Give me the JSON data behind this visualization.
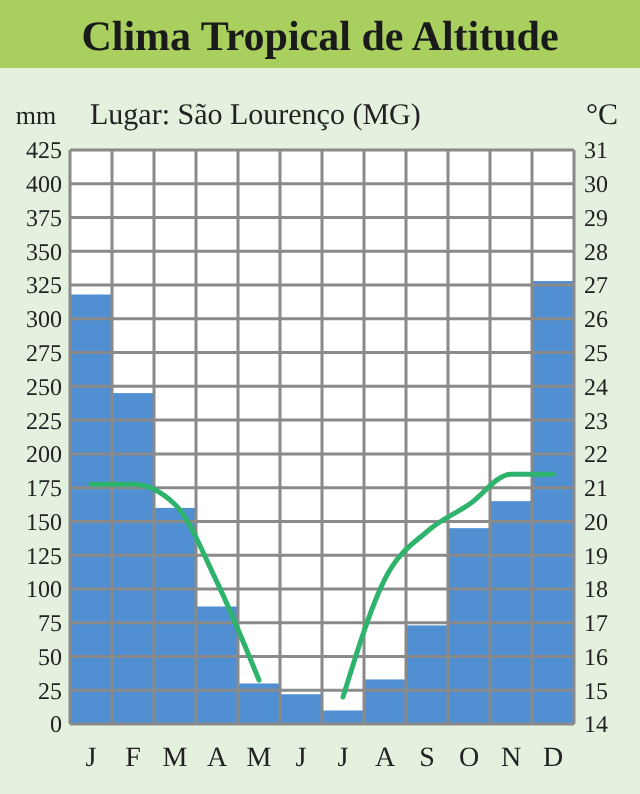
{
  "chart_data": {
    "type": "bar",
    "title": "Clima Tropical de Altitude",
    "subtitle": "Lugar: São Lourenço (MG)",
    "ylabel": "mm",
    "y2label": "°C",
    "categories": [
      "J",
      "F",
      "M",
      "A",
      "M",
      "J",
      "J",
      "A",
      "S",
      "O",
      "N",
      "D"
    ],
    "series": [
      {
        "color": "#4f8fd2",
        "values": [
          318,
          245,
          160,
          87,
          30,
          22,
          10,
          33,
          73,
          145,
          165,
          328
        ]
      },
      {
        "type": "line",
        "axis": "y2",
        "color": "#2db36b",
        "values": [
          21.1,
          21.1,
          20.5,
          18.2,
          15.3,
          null,
          14.8,
          18.3,
          19.7,
          20.5,
          21.4,
          21.4
        ]
      }
    ],
    "ylim": [
      0,
      425
    ],
    "yticks": [
      0,
      25,
      50,
      75,
      100,
      125,
      150,
      175,
      200,
      225,
      250,
      275,
      300,
      325,
      350,
      375,
      400,
      425
    ],
    "y2lim": [
      14,
      31
    ],
    "y2ticks": [
      14,
      15,
      16,
      17,
      18,
      19,
      20,
      21,
      22,
      23,
      24,
      25,
      26,
      27,
      28,
      29,
      30,
      31
    ],
    "grid": true,
    "line_style": "solid",
    "marker": "none"
  }
}
